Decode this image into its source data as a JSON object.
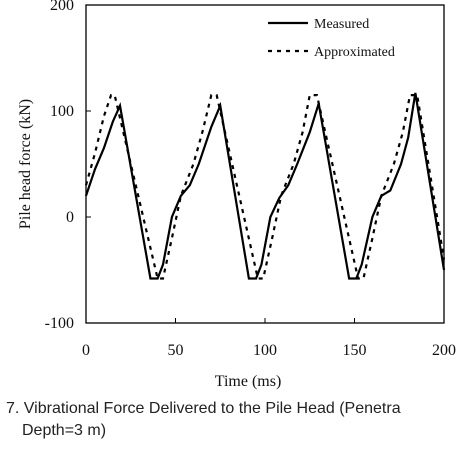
{
  "chart_data": {
    "type": "line",
    "xlabel": "Time (ms)",
    "ylabel": "Pile head force (kN)",
    "xlim": [
      0,
      200
    ],
    "ylim": [
      -100,
      200
    ],
    "xticks": [
      0,
      50,
      100,
      150,
      200
    ],
    "yticks": [
      -100,
      0,
      100,
      200
    ],
    "legend": "upper right",
    "series": [
      {
        "name": "Measured",
        "color": "#000000",
        "style": "solid",
        "x": [
          0,
          5,
          10,
          15,
          19,
          36,
          40,
          43,
          48,
          53,
          58,
          63,
          70,
          75,
          91,
          95,
          98,
          103,
          108,
          113,
          118,
          125,
          130,
          147,
          151,
          154,
          160,
          165,
          170,
          176,
          180,
          184,
          200
        ],
        "values": [
          20,
          45,
          65,
          90,
          105,
          -58,
          -58,
          -45,
          0,
          20,
          30,
          50,
          85,
          105,
          -58,
          -58,
          -45,
          0,
          18,
          30,
          50,
          80,
          107,
          -58,
          -58,
          -45,
          0,
          20,
          25,
          50,
          75,
          117,
          -50
        ]
      },
      {
        "name": "Approximated",
        "color": "#000000",
        "style": "dotted",
        "x": [
          0,
          5,
          10,
          14,
          16,
          40,
          43,
          48,
          53,
          60,
          65,
          70,
          73,
          96,
          99,
          104,
          109,
          116,
          121,
          125,
          129,
          152,
          155,
          160,
          165,
          172,
          177,
          181,
          185,
          200
        ],
        "values": [
          30,
          60,
          95,
          115,
          115,
          -58,
          -58,
          -20,
          20,
          50,
          80,
          115,
          115,
          -58,
          -58,
          -20,
          20,
          50,
          80,
          115,
          115,
          -58,
          -58,
          -20,
          20,
          50,
          80,
          115,
          115,
          -40
        ]
      }
    ]
  },
  "caption": [
    "7. Vibrational Force Delivered to the Pile Head (Penetra",
    "Depth=3 m)"
  ]
}
